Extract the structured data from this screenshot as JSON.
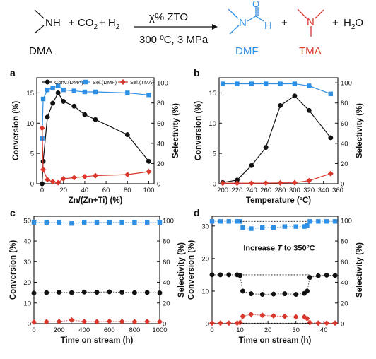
{
  "scheme": {
    "reactant_main": "NH",
    "reactant_label": "DMA",
    "plus_reagents": "+ CO",
    "co2_sub": "2",
    "plus_h2": "+ H",
    "h2_sub": "2",
    "catalyst": "χ% ZTO",
    "conditions": "300 ºC, 3 MPa",
    "product1_o": "O",
    "product1_n": "N",
    "product1_h": "H",
    "product1_label": "DMF",
    "plus1": "+",
    "product2_n": "N",
    "product2_label": "TMA",
    "plus2": "+",
    "water_h": "H",
    "water_sub": "2",
    "water_o": "O",
    "colors": {
      "dmf": "#2f8fe3",
      "tma": "#d9362c",
      "black": "#111111"
    }
  },
  "chart_data": [
    {
      "panel": "a",
      "type": "line",
      "xlabel": "Zn/(Zn+Ti) (%)",
      "ylabel_left": "Conversion (%)",
      "ylabel_right": "Selectivity (%)",
      "xlim": [
        -5,
        105
      ],
      "xticks": [
        0,
        20,
        40,
        60,
        80,
        100
      ],
      "ylim_left": [
        0,
        17.5
      ],
      "yticks_left": [
        0,
        5,
        10,
        15
      ],
      "ylim_right": [
        0,
        105
      ],
      "yticks_right": [
        0,
        20,
        40,
        60,
        80,
        100
      ],
      "legend": "top",
      "series": [
        {
          "name": "Conv.(DMA)",
          "axis": "left",
          "color": "#111111",
          "marker": "circle",
          "x": [
            0,
            1,
            5,
            10,
            15,
            20,
            30,
            40,
            50,
            80,
            100
          ],
          "y": [
            0,
            3.7,
            11.0,
            13.3,
            15.0,
            13.6,
            12.8,
            11.4,
            10.6,
            8.1,
            3.7
          ]
        },
        {
          "name": "Sel.(DMF)",
          "axis": "right",
          "color": "#2f8fe3",
          "marker": "square",
          "x": [
            0,
            1,
            5,
            10,
            15,
            20,
            30,
            40,
            50,
            80,
            100
          ],
          "y": [
            45,
            84,
            93,
            95,
            97,
            93,
            92,
            91,
            91,
            90,
            88
          ]
        },
        {
          "name": "Sel.(TMA)",
          "axis": "right",
          "color": "#d9362c",
          "marker": "diamond",
          "x": [
            0,
            1,
            5,
            10,
            15,
            20,
            30,
            40,
            50,
            80,
            100
          ],
          "y": [
            55,
            14,
            4,
            2,
            1,
            5,
            6,
            7,
            8,
            9,
            12
          ]
        }
      ]
    },
    {
      "panel": "b",
      "type": "line",
      "xlabel": "Temperature (ºC)",
      "ylabel_left": "Conversion (%)",
      "ylabel_right": "Selectivity (%)",
      "xlim": [
        195,
        360
      ],
      "xticks": [
        200,
        220,
        240,
        260,
        280,
        300,
        320,
        340,
        360
      ],
      "ylim_left": [
        0,
        17.5
      ],
      "yticks_left": [
        0,
        5,
        10,
        15
      ],
      "ylim_right": [
        0,
        105
      ],
      "yticks_right": [
        0,
        20,
        40,
        60,
        80,
        100
      ],
      "series": [
        {
          "name": "Conv.(DMA)",
          "axis": "left",
          "color": "#111111",
          "marker": "circle",
          "x": [
            200,
            220,
            240,
            260,
            280,
            300,
            320,
            350
          ],
          "y": [
            0.2,
            0.6,
            3.0,
            6.0,
            12.9,
            14.5,
            12.1,
            7.6
          ]
        },
        {
          "name": "Sel.(DMF)",
          "axis": "right",
          "color": "#2f8fe3",
          "marker": "square",
          "x": [
            200,
            220,
            240,
            260,
            280,
            300,
            320,
            350
          ],
          "y": [
            99,
            99,
            99,
            99,
            99,
            99,
            97,
            89
          ]
        },
        {
          "name": "Sel.(TMA)",
          "axis": "right",
          "color": "#d9362c",
          "marker": "diamond",
          "x": [
            200,
            220,
            240,
            260,
            280,
            300,
            320,
            350
          ],
          "y": [
            0.5,
            0.5,
            0.5,
            0.6,
            0.8,
            1.0,
            3.0,
            10.0
          ]
        }
      ]
    },
    {
      "panel": "c",
      "type": "scatter",
      "xlabel": "Time on stream (h)",
      "ylabel_left": "Conversion (%)",
      "ylabel_right": "Selectivity (%)",
      "xlim": [
        0,
        1000
      ],
      "xticks": [
        0,
        200,
        400,
        600,
        800,
        1000
      ],
      "ylim_left": [
        0,
        52
      ],
      "yticks_left": [
        0,
        10,
        20,
        30,
        40,
        50
      ],
      "ylim_right": [
        0,
        104
      ],
      "yticks_right": [
        0,
        20,
        40,
        60,
        80,
        100
      ],
      "series": [
        {
          "name": "Conv.(DMA)",
          "axis": "left",
          "color": "#111111",
          "marker": "circle",
          "x": [
            0,
            100,
            200,
            300,
            400,
            500,
            600,
            700,
            800,
            900,
            1000
          ],
          "y": [
            14.8,
            15.0,
            15.2,
            15.0,
            15.3,
            15.2,
            15.4,
            15.2,
            15.0,
            15.1,
            14.9
          ]
        },
        {
          "name": "Sel.(DMF)",
          "axis": "right",
          "color": "#2f8fe3",
          "marker": "square",
          "x": [
            0,
            100,
            200,
            300,
            400,
            500,
            600,
            700,
            800,
            900,
            1000
          ],
          "y": [
            98,
            98,
            98,
            97,
            98,
            98,
            98,
            98,
            98,
            98,
            98
          ]
        },
        {
          "name": "Sel.(TMA)",
          "axis": "right",
          "color": "#d9362c",
          "marker": "diamond",
          "x": [
            0,
            100,
            200,
            300,
            400,
            500,
            600,
            700,
            800,
            900,
            1000
          ],
          "y": [
            1.5,
            1.8,
            2.0,
            3.5,
            2.0,
            1.8,
            2.2,
            2.0,
            1.8,
            2.0,
            1.8
          ]
        }
      ]
    },
    {
      "panel": "d",
      "type": "scatter",
      "xlabel": "Time on stream (h)",
      "ylabel_left": "Conversion (%)",
      "ylabel_right": "Selectivity (%)",
      "annotation": "Increase T to 350ºC",
      "annotation_italic_letter": "T",
      "xlim": [
        0,
        45
      ],
      "xticks": [
        0,
        10,
        20,
        30,
        40
      ],
      "ylim_left": [
        0,
        33
      ],
      "yticks_left": [
        0,
        10,
        20,
        30
      ],
      "ylim_right": [
        0,
        104
      ],
      "yticks_right": [
        0,
        20,
        40,
        60,
        80,
        100
      ],
      "series": [
        {
          "name": "Conv.(DMA)",
          "axis": "left",
          "color": "#111111",
          "marker": "circle",
          "x": [
            0,
            3,
            6,
            9,
            10,
            11,
            14,
            18,
            22,
            26,
            30,
            33,
            34,
            35,
            38,
            41,
            44
          ],
          "y": [
            15,
            15,
            15,
            15,
            14.8,
            10,
            9.2,
            9.0,
            9.1,
            9.2,
            9.0,
            9.3,
            10,
            14.2,
            14.7,
            14.9,
            14.8
          ]
        },
        {
          "name": "Sel.(DMF)",
          "axis": "right",
          "color": "#2f8fe3",
          "marker": "square",
          "x": [
            0,
            3,
            6,
            9,
            10,
            11,
            14,
            18,
            22,
            26,
            30,
            33,
            34,
            35,
            38,
            41,
            44
          ],
          "y": [
            99,
            99,
            99,
            99,
            99,
            93,
            92,
            93,
            93,
            94,
            94,
            94,
            95,
            99,
            99,
            99,
            99
          ]
        },
        {
          "name": "Sel.(TMA)",
          "axis": "right",
          "color": "#d9362c",
          "marker": "diamond",
          "x": [
            0,
            3,
            6,
            9,
            10,
            11,
            14,
            18,
            22,
            26,
            30,
            33,
            34,
            35,
            38,
            41,
            44
          ],
          "y": [
            0.5,
            0.5,
            0.5,
            0.5,
            1,
            7,
            9,
            8,
            7.5,
            7,
            6.5,
            6.5,
            5,
            1,
            0.5,
            0.5,
            0.5
          ]
        }
      ]
    }
  ]
}
